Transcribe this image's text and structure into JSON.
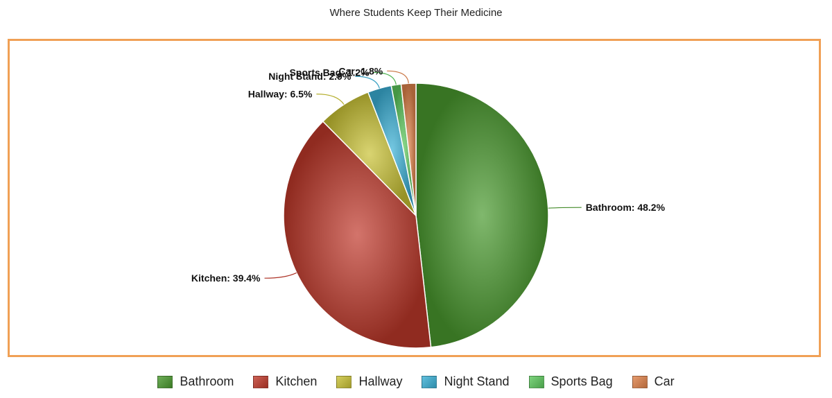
{
  "chart_data": {
    "type": "pie",
    "title": "Where Students Keep Their Medicine",
    "series": [
      {
        "name": "Bathroom",
        "value": 48.2,
        "label": "Bathroom: 48.2%",
        "color": "#4a9a2e"
      },
      {
        "name": "Kitchen",
        "value": 39.4,
        "label": "Kitchen: 39.4%",
        "color": "#c0392b"
      },
      {
        "name": "Hallway",
        "value": 6.5,
        "label": "Hallway: 6.5%",
        "color": "#c9c234"
      },
      {
        "name": "Night Stand",
        "value": 2.9,
        "label": "Night Stand: 2.9%",
        "color": "#3ab0d6"
      },
      {
        "name": "Sports Bag",
        "value": 1.2,
        "label": "Sports Bag: 1.2%",
        "color": "#5cc85c"
      },
      {
        "name": "Car",
        "value": 1.8,
        "label": "Car: 1.8%",
        "color": "#e0824a"
      }
    ],
    "legend_position": "bottom",
    "frame_color": "#f0a055"
  }
}
